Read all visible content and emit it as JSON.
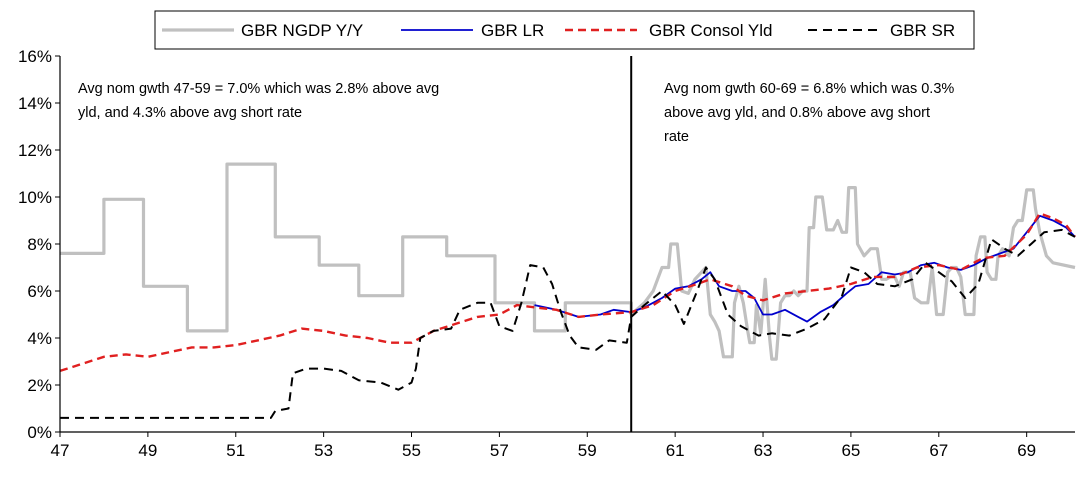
{
  "chart_data": {
    "type": "line",
    "title": "",
    "xlabel": "",
    "ylabel": "",
    "xlim": [
      47,
      70.1
    ],
    "ylim": [
      0,
      16
    ],
    "x_ticks": [
      47,
      49,
      51,
      53,
      55,
      57,
      59,
      61,
      63,
      65,
      67,
      69
    ],
    "x_tick_labels": [
      "47",
      "49",
      "51",
      "53",
      "55",
      "57",
      "59",
      "61",
      "63",
      "65",
      "67",
      "69"
    ],
    "y_ticks": [
      0,
      2,
      4,
      6,
      8,
      10,
      12,
      14,
      16
    ],
    "y_tick_labels": [
      "0%",
      "2%",
      "4%",
      "6%",
      "8%",
      "10%",
      "12%",
      "14%",
      "16%"
    ],
    "grid": false,
    "legend_position": "top",
    "divider_x": 60,
    "series": [
      {
        "name": "GBR NGDP Y/Y",
        "color": "#c0c0c0",
        "style": "solid",
        "points": [
          [
            47,
            7.6
          ],
          [
            48,
            7.6
          ],
          [
            48,
            9.9
          ],
          [
            48.9,
            9.9
          ],
          [
            48.9,
            6.2
          ],
          [
            49.9,
            6.2
          ],
          [
            49.9,
            4.3
          ],
          [
            50.8,
            4.3
          ],
          [
            50.8,
            11.4
          ],
          [
            51.9,
            11.4
          ],
          [
            51.9,
            8.3
          ],
          [
            52.9,
            8.3
          ],
          [
            52.9,
            7.1
          ],
          [
            53.8,
            7.1
          ],
          [
            53.8,
            5.8
          ],
          [
            54.8,
            5.8
          ],
          [
            54.8,
            8.3
          ],
          [
            55.8,
            8.3
          ],
          [
            55.8,
            7.5
          ],
          [
            56.9,
            7.5
          ],
          [
            56.9,
            5.5
          ],
          [
            57.8,
            5.5
          ],
          [
            57.8,
            4.3
          ],
          [
            58.5,
            4.3
          ],
          [
            58.5,
            5.5
          ],
          [
            60,
            5.5
          ],
          [
            60,
            5.0
          ],
          [
            60.3,
            5.5
          ],
          [
            60.5,
            6.0
          ],
          [
            60.7,
            7.0
          ],
          [
            60.85,
            7.0
          ],
          [
            60.9,
            8.0
          ],
          [
            61.05,
            8.0
          ],
          [
            61.15,
            6.0
          ],
          [
            61.3,
            5.9
          ],
          [
            61.45,
            6.5
          ],
          [
            61.6,
            6.8
          ],
          [
            61.7,
            7.0
          ],
          [
            61.8,
            5.0
          ],
          [
            61.9,
            4.7
          ],
          [
            62.0,
            4.3
          ],
          [
            62.1,
            3.2
          ],
          [
            62.3,
            3.2
          ],
          [
            62.35,
            5.5
          ],
          [
            62.45,
            6.2
          ],
          [
            62.55,
            5.5
          ],
          [
            62.65,
            4.3
          ],
          [
            62.7,
            3.8
          ],
          [
            62.8,
            3.8
          ],
          [
            62.85,
            5.4
          ],
          [
            62.95,
            4.2
          ],
          [
            63.05,
            6.5
          ],
          [
            63.15,
            4.0
          ],
          [
            63.2,
            3.1
          ],
          [
            63.3,
            3.1
          ],
          [
            63.4,
            5.5
          ],
          [
            63.5,
            5.8
          ],
          [
            63.6,
            5.8
          ],
          [
            63.7,
            6.0
          ],
          [
            63.8,
            5.8
          ],
          [
            63.9,
            6.0
          ],
          [
            64.0,
            6.0
          ],
          [
            64.05,
            8.7
          ],
          [
            64.15,
            8.7
          ],
          [
            64.2,
            10.0
          ],
          [
            64.35,
            10.0
          ],
          [
            64.45,
            8.6
          ],
          [
            64.6,
            8.6
          ],
          [
            64.7,
            9.0
          ],
          [
            64.8,
            8.5
          ],
          [
            64.9,
            8.5
          ],
          [
            64.95,
            10.4
          ],
          [
            65.1,
            10.4
          ],
          [
            65.15,
            8.0
          ],
          [
            65.3,
            7.5
          ],
          [
            65.45,
            7.8
          ],
          [
            65.6,
            7.8
          ],
          [
            65.7,
            6.5
          ],
          [
            65.8,
            6.5
          ],
          [
            65.9,
            6.6
          ],
          [
            66.0,
            6.6
          ],
          [
            66.1,
            6.2
          ],
          [
            66.2,
            6.8
          ],
          [
            66.35,
            6.8
          ],
          [
            66.45,
            5.7
          ],
          [
            66.6,
            5.5
          ],
          [
            66.75,
            5.5
          ],
          [
            66.85,
            7.0
          ],
          [
            66.95,
            5.0
          ],
          [
            67.1,
            5.0
          ],
          [
            67.2,
            6.8
          ],
          [
            67.3,
            7.0
          ],
          [
            67.4,
            7.0
          ],
          [
            67.5,
            6.6
          ],
          [
            67.6,
            5.0
          ],
          [
            67.8,
            5.0
          ],
          [
            67.85,
            7.5
          ],
          [
            67.95,
            8.3
          ],
          [
            68.05,
            8.3
          ],
          [
            68.1,
            6.8
          ],
          [
            68.2,
            6.5
          ],
          [
            68.3,
            6.5
          ],
          [
            68.35,
            7.5
          ],
          [
            68.45,
            7.8
          ],
          [
            68.6,
            7.5
          ],
          [
            68.7,
            8.7
          ],
          [
            68.8,
            9.0
          ],
          [
            68.9,
            9.0
          ],
          [
            69.0,
            10.3
          ],
          [
            69.15,
            10.3
          ],
          [
            69.2,
            9.5
          ],
          [
            69.3,
            8.5
          ],
          [
            69.45,
            7.5
          ],
          [
            69.6,
            7.2
          ],
          [
            70.1,
            7.0
          ]
        ]
      },
      {
        "name": "GBR LR",
        "color": "#0000cc",
        "style": "solid",
        "points": [
          [
            57.8,
            5.4
          ],
          [
            58.3,
            5.2
          ],
          [
            58.8,
            4.9
          ],
          [
            59.3,
            5.0
          ],
          [
            59.6,
            5.2
          ],
          [
            60,
            5.1
          ],
          [
            60.3,
            5.3
          ],
          [
            60.7,
            5.7
          ],
          [
            61.0,
            6.1
          ],
          [
            61.3,
            6.2
          ],
          [
            61.6,
            6.5
          ],
          [
            61.8,
            6.8
          ],
          [
            62.0,
            6.2
          ],
          [
            62.3,
            6.0
          ],
          [
            62.6,
            6.0
          ],
          [
            62.8,
            5.7
          ],
          [
            63.0,
            5.0
          ],
          [
            63.2,
            5.0
          ],
          [
            63.5,
            5.2
          ],
          [
            63.8,
            4.9
          ],
          [
            64.0,
            4.7
          ],
          [
            64.3,
            5.1
          ],
          [
            64.6,
            5.4
          ],
          [
            64.9,
            5.9
          ],
          [
            65.1,
            6.2
          ],
          [
            65.4,
            6.3
          ],
          [
            65.7,
            6.8
          ],
          [
            66.0,
            6.7
          ],
          [
            66.3,
            6.8
          ],
          [
            66.6,
            7.1
          ],
          [
            66.9,
            7.2
          ],
          [
            67.2,
            7.0
          ],
          [
            67.5,
            6.9
          ],
          [
            67.8,
            7.1
          ],
          [
            68.1,
            7.4
          ],
          [
            68.4,
            7.6
          ],
          [
            68.7,
            7.8
          ],
          [
            69.0,
            8.5
          ],
          [
            69.3,
            9.2
          ],
          [
            69.6,
            9.0
          ],
          [
            69.9,
            8.7
          ],
          [
            70.1,
            8.3
          ]
        ]
      },
      {
        "name": "GBR Consol Yld",
        "color": "#e02020",
        "style": "dashed",
        "points": [
          [
            47,
            2.6
          ],
          [
            47.5,
            2.9
          ],
          [
            48,
            3.2
          ],
          [
            48.5,
            3.3
          ],
          [
            49,
            3.2
          ],
          [
            49.5,
            3.4
          ],
          [
            50,
            3.6
          ],
          [
            50.5,
            3.6
          ],
          [
            51,
            3.7
          ],
          [
            51.5,
            3.9
          ],
          [
            52,
            4.1
          ],
          [
            52.5,
            4.4
          ],
          [
            53,
            4.3
          ],
          [
            53.5,
            4.1
          ],
          [
            54,
            4.0
          ],
          [
            54.5,
            3.8
          ],
          [
            55,
            3.8
          ],
          [
            55.5,
            4.3
          ],
          [
            56,
            4.6
          ],
          [
            56.5,
            4.9
          ],
          [
            57,
            5.0
          ],
          [
            57.4,
            5.4
          ],
          [
            57.8,
            5.3
          ],
          [
            58.3,
            5.2
          ],
          [
            58.8,
            4.9
          ],
          [
            59.3,
            5.0
          ],
          [
            60,
            5.1
          ],
          [
            60.5,
            5.4
          ],
          [
            61,
            6.0
          ],
          [
            61.5,
            6.3
          ],
          [
            61.8,
            6.5
          ],
          [
            62.3,
            6.2
          ],
          [
            62.6,
            5.8
          ],
          [
            63.0,
            5.6
          ],
          [
            63.5,
            5.9
          ],
          [
            64.0,
            6.0
          ],
          [
            64.5,
            6.1
          ],
          [
            65.0,
            6.3
          ],
          [
            65.5,
            6.6
          ],
          [
            66.0,
            6.6
          ],
          [
            66.5,
            7.0
          ],
          [
            67.0,
            7.1
          ],
          [
            67.5,
            6.9
          ],
          [
            68.0,
            7.4
          ],
          [
            68.5,
            7.5
          ],
          [
            69.0,
            8.4
          ],
          [
            69.3,
            9.3
          ],
          [
            69.6,
            9.1
          ],
          [
            69.9,
            8.8
          ],
          [
            70.1,
            8.3
          ]
        ]
      },
      {
        "name": "GBR SR",
        "color": "#000000",
        "style": "dashed",
        "points": [
          [
            47,
            0.6
          ],
          [
            51.8,
            0.6
          ],
          [
            51.9,
            0.9
          ],
          [
            52.2,
            1.0
          ],
          [
            52.3,
            2.5
          ],
          [
            52.6,
            2.7
          ],
          [
            53.0,
            2.7
          ],
          [
            53.4,
            2.6
          ],
          [
            53.8,
            2.2
          ],
          [
            54.3,
            2.1
          ],
          [
            54.7,
            1.8
          ],
          [
            55.0,
            2.1
          ],
          [
            55.1,
            2.7
          ],
          [
            55.2,
            4.0
          ],
          [
            55.5,
            4.3
          ],
          [
            55.9,
            4.4
          ],
          [
            56.1,
            5.2
          ],
          [
            56.5,
            5.5
          ],
          [
            56.8,
            5.5
          ],
          [
            57.0,
            4.5
          ],
          [
            57.3,
            4.3
          ],
          [
            57.5,
            5.5
          ],
          [
            57.7,
            7.1
          ],
          [
            58.0,
            7.0
          ],
          [
            58.2,
            6.3
          ],
          [
            58.4,
            5.1
          ],
          [
            58.6,
            4.1
          ],
          [
            58.8,
            3.6
          ],
          [
            59.2,
            3.5
          ],
          [
            59.5,
            3.9
          ],
          [
            59.9,
            3.8
          ],
          [
            60,
            4.9
          ],
          [
            60.3,
            5.4
          ],
          [
            60.7,
            6.0
          ],
          [
            61.0,
            5.4
          ],
          [
            61.2,
            4.6
          ],
          [
            61.5,
            6.0
          ],
          [
            61.7,
            7.0
          ],
          [
            61.9,
            6.5
          ],
          [
            62.2,
            5.0
          ],
          [
            62.5,
            4.5
          ],
          [
            62.9,
            4.1
          ],
          [
            63.2,
            4.2
          ],
          [
            63.6,
            4.1
          ],
          [
            64.0,
            4.4
          ],
          [
            64.4,
            4.8
          ],
          [
            64.8,
            5.8
          ],
          [
            65.0,
            7.0
          ],
          [
            65.3,
            6.8
          ],
          [
            65.6,
            6.3
          ],
          [
            66.0,
            6.2
          ],
          [
            66.4,
            6.5
          ],
          [
            66.7,
            7.2
          ],
          [
            67.0,
            6.8
          ],
          [
            67.3,
            6.4
          ],
          [
            67.6,
            5.7
          ],
          [
            67.9,
            6.3
          ],
          [
            68.2,
            8.2
          ],
          [
            68.5,
            7.8
          ],
          [
            68.8,
            7.5
          ],
          [
            69.1,
            8.0
          ],
          [
            69.4,
            8.5
          ],
          [
            69.8,
            8.6
          ],
          [
            70.1,
            8.3
          ]
        ]
      }
    ],
    "annotations": [
      {
        "lines": [
          "Avg nom gwth 47-59 = 7.0% which was 2.8% above avg",
          "yld, and 4.3% above avg short rate"
        ]
      },
      {
        "lines": [
          "Avg nom gwth 60-69 = 6.8% which was 0.3%",
          "above avg yld, and 0.8% above avg short",
          "rate"
        ]
      }
    ]
  }
}
